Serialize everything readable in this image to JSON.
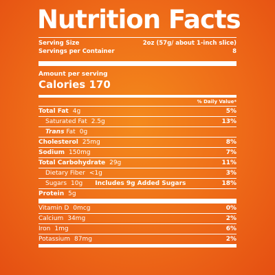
{
  "title": "Nutrition Facts",
  "serving": {
    "size_label": "Serving Size",
    "size_value": "2oz (57g/ about 1-inch slice)",
    "servings_label": "Servings per Container",
    "servings_value": "8"
  },
  "amount_per_serving": "Amount per serving",
  "calories": "Calories 170",
  "dv_header": "% Daily Value*",
  "nutrients": [
    {
      "label": "Total Fat",
      "amount": "4g",
      "pct": "5%"
    },
    {
      "label": "Saturated Fat",
      "amount": "2.5g",
      "pct": "13%"
    },
    {
      "label": "Trans",
      "label2": "Fat",
      "amount": "0g",
      "pct": ""
    },
    {
      "label": "Cholesterol",
      "amount": "25mg",
      "pct": "8%"
    },
    {
      "label": "Sodium",
      "amount": "150mg",
      "pct": "7%"
    },
    {
      "label": "Total Carbohydrate",
      "amount": "29g",
      "pct": "11%"
    },
    {
      "label": "Dietary Fiber",
      "amount": "<1g",
      "pct": "3%"
    },
    {
      "label": "Sugars",
      "amount": "10g",
      "added": "Includes 9g Added Sugars",
      "pct": "18%"
    },
    {
      "label": "Protein",
      "amount": "5g",
      "pct": ""
    }
  ],
  "vitamins": [
    {
      "label": "Vitamin D",
      "amount": "0mcg",
      "pct": "0%"
    },
    {
      "label": "Calcium",
      "amount": "34mg",
      "pct": "2%"
    },
    {
      "label": "Iron",
      "amount": "1mg",
      "pct": "6%"
    },
    {
      "label": "Potassium",
      "amount": "87mg",
      "pct": "2%"
    }
  ],
  "colors": {
    "background": "#ee6a18",
    "text": "#ffffff"
  }
}
